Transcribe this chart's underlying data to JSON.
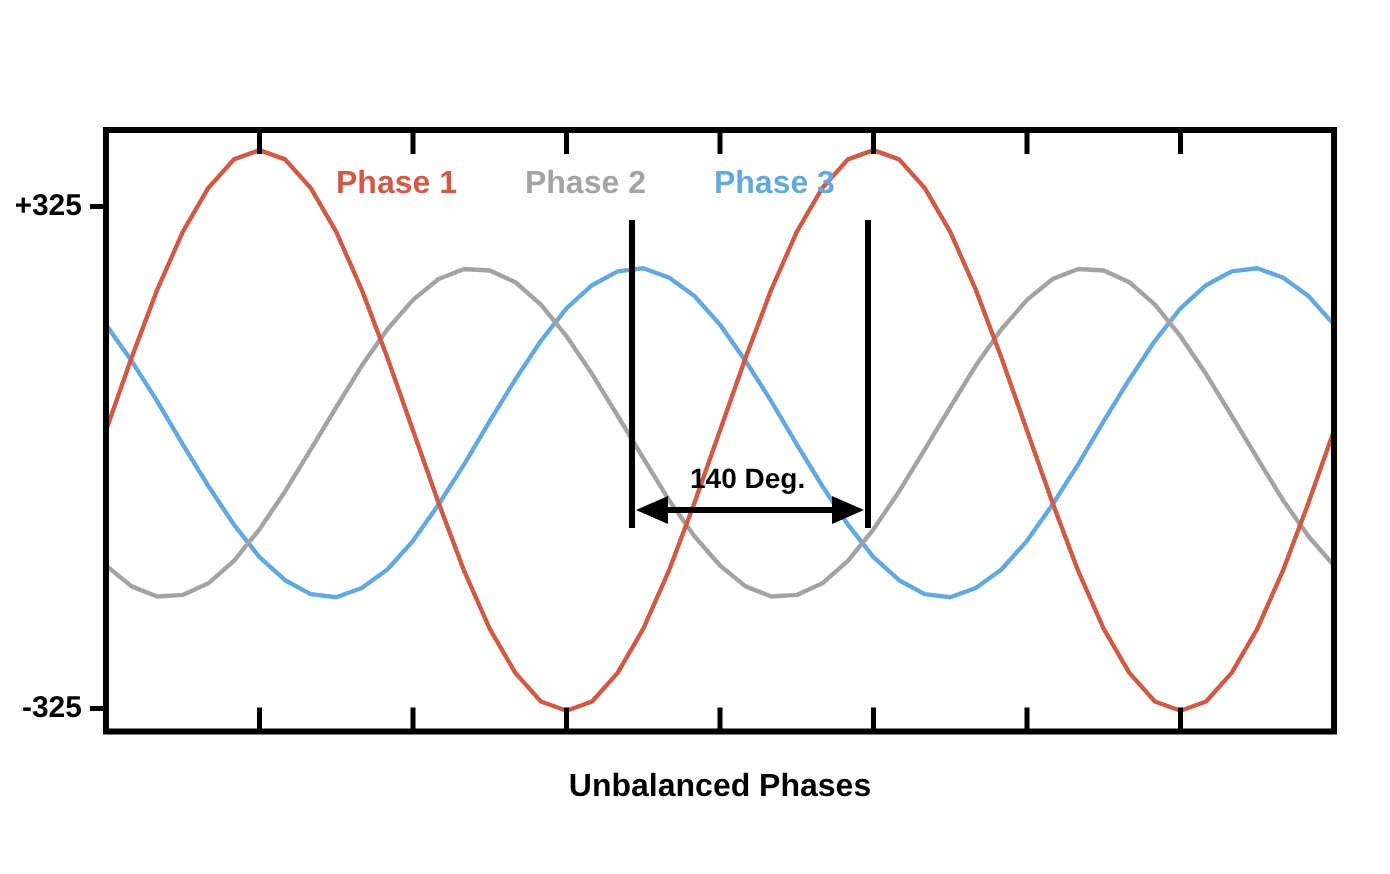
{
  "chart_data": {
    "type": "line",
    "xlabel": "Unbalanced Phases",
    "annotations": [
      "140 Deg."
    ],
    "categories": [
      null,
      null,
      null,
      null,
      null,
      null,
      null,
      null,
      null,
      null,
      null,
      null,
      null,
      null,
      null,
      null,
      null,
      null,
      null,
      null,
      null,
      null,
      null,
      null,
      null,
      null,
      null,
      null,
      null,
      null,
      null,
      null,
      null,
      null,
      null,
      null,
      null,
      null,
      null,
      null,
      null,
      null,
      null,
      null,
      null,
      null,
      null,
      null,
      null
    ],
    "ylim": [
      -355,
      424
    ],
    "yticks": [
      {
        "value": 325,
        "label": "+325"
      },
      {
        "value": -325,
        "label": "-325"
      }
    ],
    "tick_labels": "y",
    "legend": "top",
    "line_style": "solid",
    "series": [
      {
        "name": "Phase 1",
        "color": "#cf5a45",
        "values": [
          35,
          129,
          217,
          292,
          349,
          386,
          398,
          386,
          349,
          292,
          217,
          129,
          35,
          -59,
          -147,
          -222,
          -279,
          -316,
          -328,
          -316,
          -279,
          -222,
          -147,
          -59,
          35,
          129,
          217,
          292,
          349,
          386,
          398,
          386,
          349,
          292,
          217,
          129,
          35,
          -59,
          -147,
          -222,
          -279,
          -316,
          -328,
          -316,
          -279,
          -222,
          -147,
          -59,
          35
        ]
      },
      {
        "name": "Phase 2",
        "color": "#a3a3a3",
        "values": [
          -140,
          -167,
          -180,
          -178,
          -163,
          -134,
          -93,
          -44,
          10,
          65,
          119,
          166,
          204,
          231,
          244,
          242,
          227,
          198,
          157,
          108,
          54,
          -1,
          -55,
          -102,
          -140,
          -167,
          -180,
          -178,
          -163,
          -134,
          -93,
          -44,
          10,
          65,
          119,
          166,
          204,
          231,
          244,
          242,
          227,
          198,
          157,
          108,
          54,
          -1,
          -55,
          -102,
          -140
        ]
      },
      {
        "name": "Phase 3",
        "color": "#64a8e0",
        "values": [
          172,
          125,
          73,
          17,
          -37,
          -87,
          -129,
          -159,
          -177,
          -181,
          -169,
          -145,
          -108,
          -61,
          -9,
          47,
          101,
          151,
          193,
          223,
          241,
          245,
          233,
          209,
          172,
          125,
          73,
          17,
          -37,
          -87,
          -129,
          -159,
          -177,
          -181,
          -169,
          -145,
          -108,
          -61,
          -9,
          47,
          101,
          151,
          193,
          223,
          241,
          245,
          233,
          209,
          172
        ]
      }
    ]
  }
}
